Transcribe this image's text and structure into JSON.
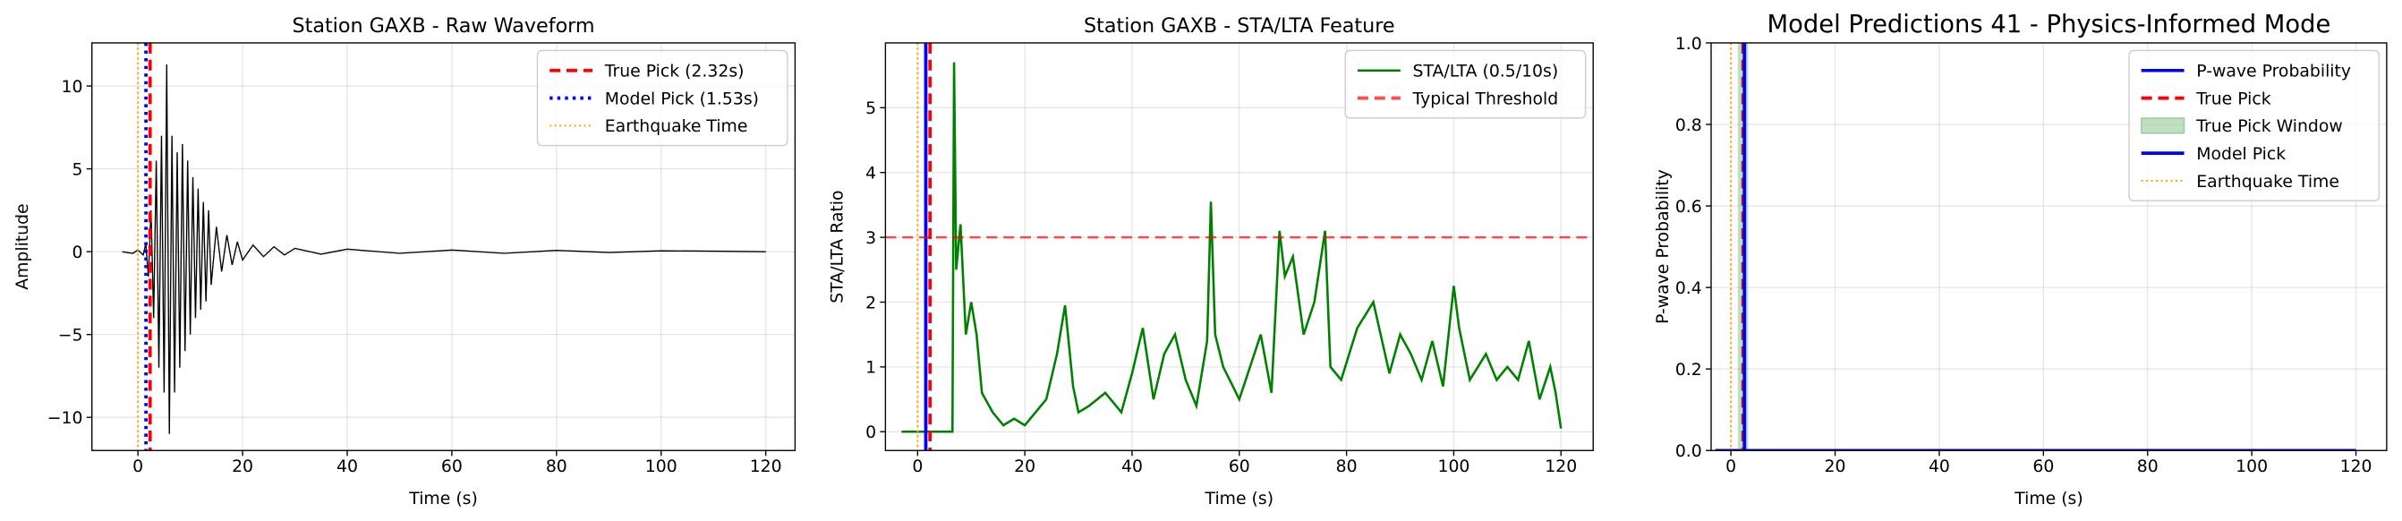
{
  "chart_data": [
    {
      "type": "line",
      "title": "Station GAXB - Raw Waveform",
      "xlabel": "Time (s)",
      "ylabel": "Amplitude",
      "xlim": [
        -8.8,
        125.6
      ],
      "ylim": [
        -12.0,
        12.6
      ],
      "xticks": [
        0,
        20,
        40,
        60,
        80,
        100,
        120
      ],
      "yticks": [
        {
          "value": -10,
          "label": "−10"
        },
        {
          "value": -5,
          "label": "−5"
        },
        0,
        5,
        10
      ],
      "grid": true,
      "legend": "upper right",
      "series": [
        {
          "color": "#000000",
          "style": "solid",
          "linewidth": 0.8,
          "x": [
            -3,
            -1,
            0,
            1,
            1.5,
            2,
            2.5,
            3,
            3.5,
            4,
            4.5,
            5,
            5.5,
            6,
            6.5,
            7,
            7.5,
            8,
            8.5,
            9,
            9.5,
            10,
            10.5,
            11,
            11.5,
            12,
            12.5,
            13,
            13.5,
            14,
            15,
            16,
            17,
            18,
            19,
            20,
            22,
            24,
            26,
            28,
            30,
            35,
            40,
            50,
            60,
            70,
            80,
            90,
            100,
            110,
            120
          ],
          "values": [
            0,
            -0.1,
            0.1,
            -0.2,
            0.5,
            -1.5,
            2.5,
            -4,
            5.5,
            -7,
            7,
            -8.5,
            11.3,
            -11,
            7,
            -8.5,
            6,
            -7,
            6.5,
            -6,
            5.5,
            -5,
            4.5,
            -4,
            3.8,
            -3.5,
            3,
            -3,
            2.5,
            -2,
            1.5,
            -1.2,
            1,
            -0.8,
            0.6,
            -0.5,
            0.4,
            -0.3,
            0.3,
            -0.2,
            0.2,
            -0.15,
            0.15,
            -0.1,
            0.1,
            -0.1,
            0.08,
            -0.05,
            0.05,
            0.03,
            0
          ]
        }
      ],
      "overlays": [
        {
          "kind": "vline",
          "name": "True Pick (2.32s)",
          "value": 2.32,
          "color": "red",
          "style": "dashed"
        },
        {
          "kind": "vline",
          "name": "Model Pick (1.53s)",
          "value": 1.53,
          "color": "blue",
          "style": "dotted"
        },
        {
          "kind": "vline",
          "name": "Earthquake Time",
          "value": 0,
          "color": "orange",
          "style": "fine-dotted"
        }
      ]
    },
    {
      "type": "line",
      "title": "Station GAXB - STA/LTA Feature",
      "xlabel": "Time (s)",
      "ylabel": "STA/LTA Ratio",
      "xlim": [
        -6.0,
        126.0
      ],
      "ylim": [
        -0.29,
        6.0
      ],
      "xticks": [
        0,
        20,
        40,
        60,
        80,
        100,
        120
      ],
      "yticks": [
        0,
        1,
        2,
        3,
        4,
        5
      ],
      "grid": true,
      "legend": "upper right",
      "series": [
        {
          "name": "STA/LTA (0.5/10s)",
          "color": "green",
          "style": "solid",
          "linewidth": 1.5,
          "x": [
            -3,
            0,
            3,
            6.5,
            6.8,
            7.2,
            8,
            9,
            10,
            11,
            12,
            14,
            16,
            18,
            20,
            22,
            24,
            26,
            27.5,
            29,
            30,
            32,
            35,
            38,
            40,
            42,
            44,
            46,
            48,
            50,
            52,
            54,
            54.7,
            55.5,
            57,
            60,
            62,
            64,
            66,
            67.5,
            68.5,
            70,
            72,
            74,
            76,
            77,
            79,
            82,
            85,
            88,
            90,
            92,
            94,
            96,
            98,
            100,
            101,
            103,
            106,
            108,
            110,
            112,
            114,
            116,
            118,
            119,
            120
          ],
          "values": [
            0,
            0,
            0,
            0,
            5.7,
            2.5,
            3.2,
            1.5,
            2.0,
            1.5,
            0.6,
            0.3,
            0.1,
            0.2,
            0.1,
            0.3,
            0.5,
            1.2,
            1.95,
            0.7,
            0.3,
            0.4,
            0.6,
            0.3,
            0.9,
            1.6,
            0.5,
            1.2,
            1.5,
            0.8,
            0.4,
            1.4,
            3.55,
            1.5,
            1.0,
            0.5,
            1.0,
            1.5,
            0.6,
            3.1,
            2.4,
            2.7,
            1.5,
            2.0,
            3.1,
            1.0,
            0.8,
            1.6,
            2.0,
            0.9,
            1.5,
            1.2,
            0.8,
            1.4,
            0.7,
            2.25,
            1.6,
            0.8,
            1.2,
            0.8,
            1.0,
            0.8,
            1.4,
            0.5,
            1.0,
            0.6,
            0.05
          ]
        }
      ],
      "overlays": [
        {
          "kind": "vline",
          "value": 0,
          "color": "orange",
          "style": "fine-dotted"
        },
        {
          "kind": "vline",
          "value": 1.53,
          "color": "blue",
          "style": "solid"
        },
        {
          "kind": "vline",
          "value": 2.32,
          "color": "red",
          "style": "dashed"
        },
        {
          "kind": "hline",
          "name": "Typical Threshold",
          "value": 3,
          "color": "red",
          "style": "dashed",
          "alpha": 0.7
        }
      ]
    },
    {
      "type": "line",
      "title": "Model Predictions 41 - Physics-Informed Mode",
      "xlabel": "Time (s)",
      "ylabel": "P-wave Probability",
      "xlim": [
        -3.8,
        125.9
      ],
      "ylim": [
        0,
        1
      ],
      "xticks": [
        0,
        20,
        40,
        60,
        80,
        100,
        120
      ],
      "yticks": [
        {
          "value": 0,
          "label": "0.0"
        },
        0.2,
        0.4,
        0.6,
        0.8,
        {
          "value": 1,
          "label": "1.0"
        }
      ],
      "grid": true,
      "legend": "upper right",
      "series": [
        {
          "name": "P-wave Probability",
          "color": "blue",
          "style": "solid",
          "linewidth": 2,
          "x": [
            -3,
            120
          ],
          "values": [
            0,
            0
          ]
        }
      ],
      "overlays": [
        {
          "kind": "vline",
          "name": "True Pick",
          "value": 2.32,
          "color": "red",
          "style": "dashed"
        },
        {
          "kind": "span",
          "name": "True Pick Window",
          "from": 1.32,
          "to": 3.32,
          "color": "green",
          "alpha": 0.25
        },
        {
          "kind": "vline",
          "name": "Model Pick",
          "value": 2.6,
          "color": "blue",
          "style": "solid"
        },
        {
          "kind": "vline",
          "name": "Earthquake Time",
          "value": 0,
          "color": "orange",
          "style": "fine-dotted"
        }
      ]
    }
  ]
}
